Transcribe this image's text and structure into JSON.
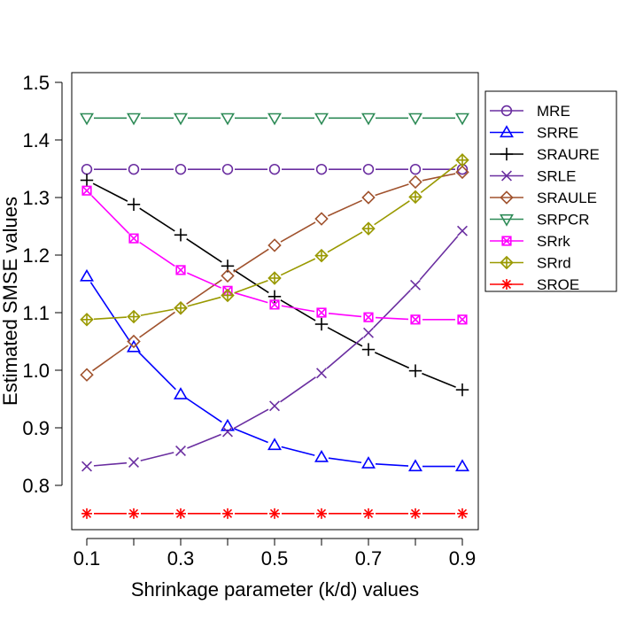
{
  "chart_data": {
    "type": "line",
    "title": "",
    "xlabel": "Shrinkage parameter (k/d) values",
    "ylabel": "Estimated SMSE values",
    "xlim": [
      0.1,
      0.9
    ],
    "ylim": [
      0.75,
      1.5
    ],
    "grid": false,
    "x": [
      0.1,
      0.2,
      0.3,
      0.4,
      0.5,
      0.6,
      0.7,
      0.8,
      0.9
    ],
    "x_ticks": [
      0.1,
      0.2,
      0.3,
      0.4,
      0.5,
      0.6,
      0.7,
      0.8,
      0.9
    ],
    "x_tick_labels": [
      "0.1",
      "",
      "0.3",
      "",
      "0.5",
      "",
      "0.7",
      "",
      "0.9"
    ],
    "y_ticks": [
      0.8,
      0.9,
      1.0,
      1.1,
      1.2,
      1.3,
      1.4,
      1.5
    ],
    "y_tick_labels": [
      "0.8",
      "0.9",
      "1.0",
      "1.1",
      "1.2",
      "1.3",
      "1.4",
      "1.5"
    ],
    "legend_position": "right",
    "series": [
      {
        "name": "MRE",
        "color": "#6a2ea0",
        "marker": "circle",
        "values": [
          1.349,
          1.349,
          1.349,
          1.349,
          1.349,
          1.349,
          1.349,
          1.349,
          1.349
        ]
      },
      {
        "name": "SRRE",
        "color": "#0000ff",
        "marker": "triangle-up",
        "values": [
          1.163,
          1.04,
          0.958,
          0.903,
          0.87,
          0.849,
          0.838,
          0.833,
          0.833
        ]
      },
      {
        "name": "SRAURE",
        "color": "#000000",
        "marker": "plus",
        "values": [
          1.33,
          1.288,
          1.235,
          1.181,
          1.128,
          1.08,
          1.036,
          0.999,
          0.966
        ]
      },
      {
        "name": "SRLE",
        "color": "#6a2ea0",
        "marker": "cross",
        "values": [
          0.833,
          0.84,
          0.86,
          0.893,
          0.938,
          0.995,
          1.065,
          1.148,
          1.242
        ]
      },
      {
        "name": "SRAULE",
        "color": "#a0522d",
        "marker": "diamond",
        "values": [
          0.992,
          1.05,
          1.108,
          1.164,
          1.217,
          1.263,
          1.3,
          1.327,
          1.344
        ]
      },
      {
        "name": "SRPCR",
        "color": "#2e8b57",
        "marker": "triangle-down",
        "values": [
          1.438,
          1.438,
          1.438,
          1.438,
          1.438,
          1.438,
          1.438,
          1.438,
          1.438
        ]
      },
      {
        "name": "SRrk",
        "color": "#ff00ff",
        "marker": "square-x",
        "values": [
          1.312,
          1.229,
          1.174,
          1.138,
          1.114,
          1.1,
          1.092,
          1.088,
          1.088
        ]
      },
      {
        "name": "SRrd",
        "color": "#999900",
        "marker": "diamond-plus",
        "values": [
          1.088,
          1.093,
          1.108,
          1.13,
          1.16,
          1.199,
          1.246,
          1.301,
          1.365
        ]
      },
      {
        "name": "SROE",
        "color": "#ff0000",
        "marker": "asterisk",
        "values": [
          0.751,
          0.751,
          0.751,
          0.751,
          0.751,
          0.751,
          0.751,
          0.751,
          0.751
        ]
      }
    ]
  }
}
